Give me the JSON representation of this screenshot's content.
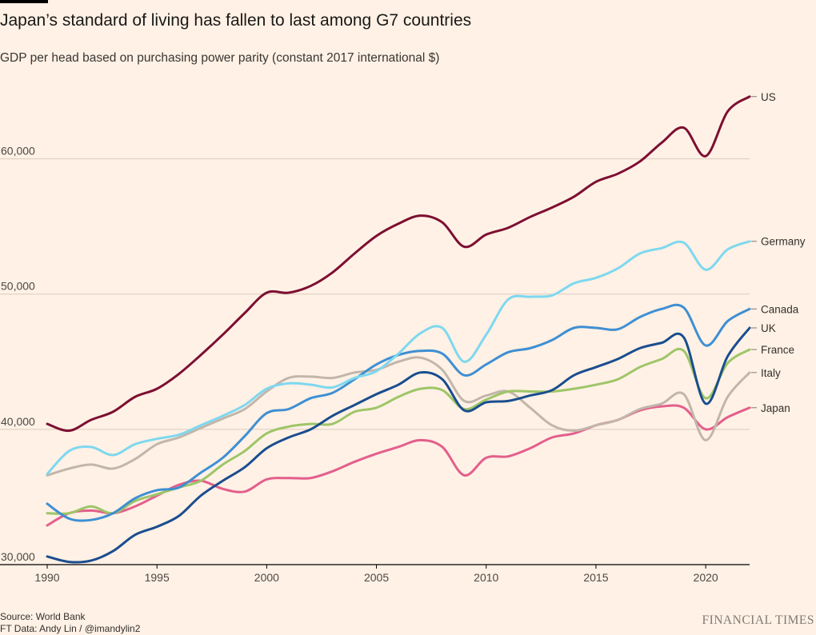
{
  "chart_data": {
    "type": "line",
    "title": "Japan’s standard of living has fallen to last among G7 countries",
    "subtitle": "GDP per head based on purchasing power parity (constant 2017 international $)",
    "ylim": [
      30000,
      65000
    ],
    "xlim": [
      1990,
      2022
    ],
    "y_ticks": [
      30000,
      40000,
      50000,
      60000
    ],
    "y_tick_labels": [
      "30,000",
      "40,000",
      "50,000",
      "60,000"
    ],
    "x_ticks": [
      1990,
      1995,
      2000,
      2005,
      2010,
      2015,
      2020
    ],
    "x_tick_labels": [
      "1990",
      "1995",
      "2000",
      "2005",
      "2010",
      "2015",
      "2020"
    ],
    "grid": "horizontal",
    "x": [
      1990,
      1991,
      1992,
      1993,
      1994,
      1995,
      1996,
      1997,
      1998,
      1999,
      2000,
      2001,
      2002,
      2003,
      2004,
      2005,
      2006,
      2007,
      2008,
      2009,
      2010,
      2011,
      2012,
      2013,
      2014,
      2015,
      2016,
      2017,
      2018,
      2019,
      2020,
      2021,
      2022
    ],
    "series": [
      {
        "name": "US",
        "color": "#7d0e32",
        "values": [
          40400,
          39900,
          40700,
          41300,
          42400,
          43000,
          44100,
          45500,
          47000,
          48600,
          50100,
          50100,
          50600,
          51600,
          53000,
          54300,
          55200,
          55800,
          55300,
          53500,
          54400,
          54900,
          55700,
          56400,
          57200,
          58300,
          58900,
          59800,
          61200,
          62300,
          60200,
          63500,
          64600
        ]
      },
      {
        "name": "Germany",
        "color": "#7ed8ef",
        "values": [
          36700,
          38400,
          38700,
          38100,
          38900,
          39300,
          39600,
          40300,
          41000,
          41800,
          43000,
          43400,
          43300,
          43100,
          43800,
          44300,
          45600,
          47100,
          47500,
          45000,
          47000,
          49600,
          49800,
          49900,
          50800,
          51200,
          51900,
          53000,
          53400,
          53800,
          51800,
          53300,
          53900
        ]
      },
      {
        "name": "Canada",
        "color": "#3e8fd3",
        "values": [
          34500,
          33400,
          33300,
          33800,
          34900,
          35500,
          35700,
          36800,
          37900,
          39500,
          41200,
          41500,
          42300,
          42700,
          43700,
          44800,
          45500,
          45800,
          45600,
          44000,
          44800,
          45700,
          46000,
          46600,
          47500,
          47500,
          47400,
          48300,
          48900,
          49000,
          46200,
          48000,
          48900
        ]
      },
      {
        "name": "UK",
        "color": "#1a4d8f",
        "values": [
          30600,
          30200,
          30300,
          31000,
          32200,
          32800,
          33600,
          35100,
          36200,
          37200,
          38600,
          39400,
          40000,
          41000,
          41800,
          42600,
          43300,
          44200,
          43700,
          41400,
          42000,
          42100,
          42500,
          42900,
          44000,
          44600,
          45200,
          46000,
          46400,
          46800,
          41900,
          45400,
          47500
        ]
      },
      {
        "name": "France",
        "color": "#9ec568",
        "values": [
          33800,
          33800,
          34300,
          33800,
          34700,
          35200,
          35700,
          36200,
          37400,
          38400,
          39700,
          40200,
          40400,
          40400,
          41300,
          41600,
          42400,
          43000,
          42900,
          41500,
          42200,
          42800,
          42800,
          42800,
          43000,
          43300,
          43700,
          44600,
          45200,
          45800,
          42300,
          44900,
          45900
        ]
      },
      {
        "name": "Italy",
        "color": "#c2b6ab",
        "values": [
          36600,
          37100,
          37400,
          37100,
          37800,
          38900,
          39400,
          40100,
          40800,
          41500,
          42800,
          43800,
          43900,
          43800,
          44200,
          44400,
          45000,
          45300,
          44400,
          42100,
          42500,
          42800,
          41600,
          40300,
          39900,
          40300,
          40700,
          41500,
          41900,
          42600,
          39200,
          42400,
          44200
        ]
      },
      {
        "name": "Japan",
        "color": "#e35f8c",
        "values": [
          32900,
          33800,
          34000,
          33800,
          34300,
          35100,
          35900,
          36200,
          35600,
          35400,
          36300,
          36400,
          36400,
          36900,
          37600,
          38200,
          38700,
          39200,
          38700,
          36600,
          37900,
          38000,
          38600,
          39400,
          39700,
          40300,
          40700,
          41400,
          41700,
          41600,
          40000,
          40900,
          41600
        ]
      }
    ]
  },
  "footer": {
    "source": "Source: World Bank",
    "credit": "FT Data: Andy Lin / @imandylin2",
    "brand": "FINANCIAL TIMES"
  }
}
